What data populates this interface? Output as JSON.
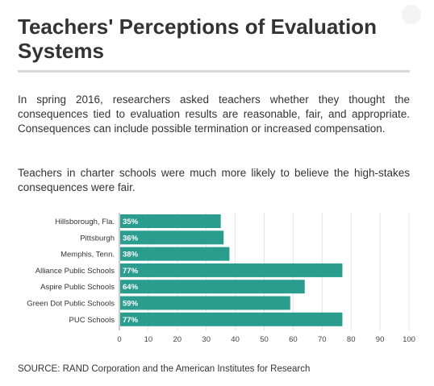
{
  "header": {
    "title": "Teachers' Perceptions of Evaluation Systems",
    "paragraph1": "In spring 2016, researchers asked teachers whether they thought the consequences tied to evaluation results are reasonable, fair, and appropriate. Consequences can include possible termination or increased compensation.",
    "paragraph2": "Teachers in charter schools were much more likely to believe the high-stakes consequences were fair."
  },
  "chart_data": {
    "type": "bar",
    "orientation": "horizontal",
    "categories": [
      "Hillsborough, Fla.",
      "Pittsburgh",
      "Memphis, Tenn.",
      "Alliance Public Schools",
      "Aspire Public Schools",
      "Green Dot Public Schools",
      "PUC Schools"
    ],
    "values": [
      35,
      36,
      38,
      77,
      64,
      59,
      77
    ],
    "data_labels": [
      "35%",
      "36%",
      "38%",
      "77%",
      "64%",
      "59%",
      "77%"
    ],
    "xlim": [
      0,
      100
    ],
    "xticks": [
      0,
      10,
      20,
      30,
      40,
      50,
      60,
      70,
      80,
      90,
      100
    ],
    "bar_color": "#2a9d8f",
    "grid": true
  },
  "footer": {
    "source": "SOURCE: RAND Corporation and the American Institutes for Research"
  }
}
